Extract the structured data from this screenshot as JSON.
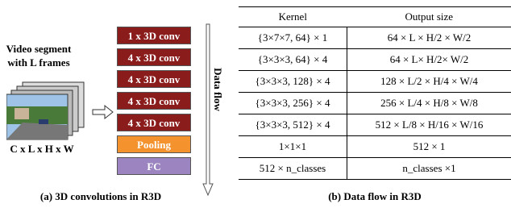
{
  "left": {
    "title_lines": [
      "Video segment",
      "with L frames"
    ],
    "dims": "C x L x H x W",
    "layers": [
      "1 x 3D conv",
      "4 x 3D conv",
      "4 x 3D conv",
      "4 x 3D conv",
      "4 x 3D conv",
      "Pooling",
      "FC"
    ],
    "flow_label": "Data flow",
    "caption": "(a) 3D convolutions in R3D"
  },
  "table": {
    "header": [
      "Kernel",
      "Output size"
    ],
    "rows": [
      [
        "{3×7×7, 64} × 1",
        "64 × L × H/2 × W/2"
      ],
      [
        "{3×3×3, 64} × 4",
        "64 × L× H/2× W/2"
      ],
      [
        "{3×3×3, 128} × 4",
        "128 × L/2 × H/4 × W/4"
      ],
      [
        "{3×3×3, 256} × 4",
        "256 × L/4 × H/8 × W/8"
      ],
      [
        "{3×3×3, 512} × 4",
        "512 × L/8 × H/16 × W/16"
      ],
      [
        "1×1×1",
        "512 × 1"
      ],
      [
        "512 × n_classes",
        "n_classes ×1"
      ]
    ],
    "caption": "(b) Data flow in R3D"
  }
}
